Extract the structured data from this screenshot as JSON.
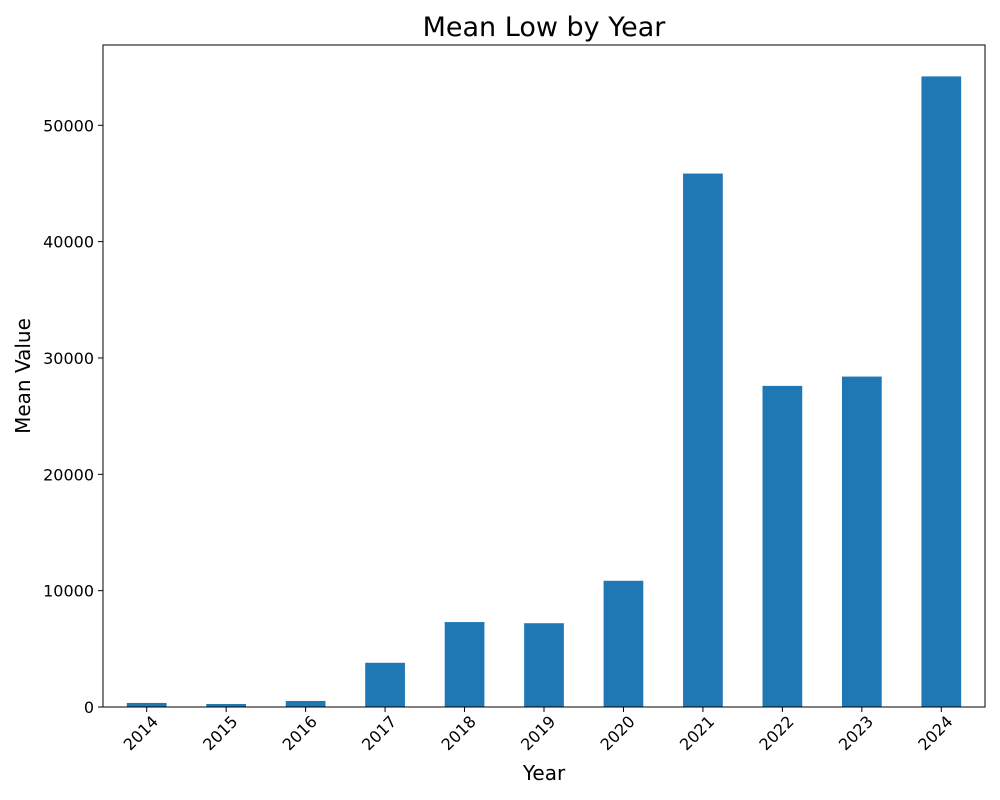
{
  "chart_data": {
    "type": "bar",
    "title": "Mean Low by Year",
    "xlabel": "Year",
    "ylabel": "Mean Value",
    "categories": [
      "2014",
      "2015",
      "2016",
      "2017",
      "2018",
      "2019",
      "2020",
      "2021",
      "2022",
      "2023",
      "2024"
    ],
    "values": [
      350,
      260,
      520,
      3800,
      7300,
      7200,
      10850,
      45850,
      27600,
      28400,
      54200
    ],
    "ylim": [
      0,
      56900
    ],
    "yticks": [
      0,
      10000,
      20000,
      30000,
      40000,
      50000
    ],
    "ytick_labels": [
      "0",
      "10000",
      "20000",
      "30000",
      "40000",
      "50000"
    ],
    "bar_color": "#1f77b4",
    "grid": false,
    "xtick_rotation_deg": 45
  }
}
